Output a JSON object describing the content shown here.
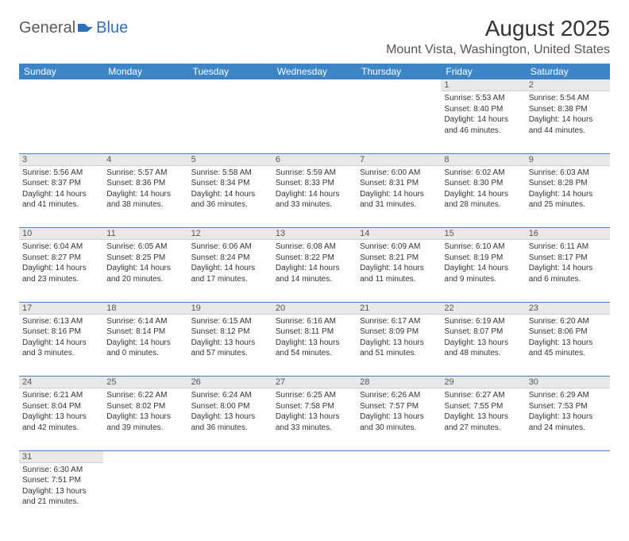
{
  "brand": {
    "part1": "General",
    "part2": "Blue"
  },
  "title": "August 2025",
  "location": "Mount Vista, Washington, United States",
  "colors": {
    "header_bg": "#3d85c6",
    "header_text": "#ffffff",
    "daynum_bg": "#e8e8e8",
    "rule": "#3d85c6",
    "brand_gray": "#5a5a5a",
    "brand_blue": "#2f6fb5"
  },
  "weekdays": [
    "Sunday",
    "Monday",
    "Tuesday",
    "Wednesday",
    "Thursday",
    "Friday",
    "Saturday"
  ],
  "weeks": [
    [
      null,
      null,
      null,
      null,
      null,
      {
        "n": "1",
        "sr": "Sunrise: 5:53 AM",
        "ss": "Sunset: 8:40 PM",
        "dl1": "Daylight: 14 hours",
        "dl2": "and 46 minutes."
      },
      {
        "n": "2",
        "sr": "Sunrise: 5:54 AM",
        "ss": "Sunset: 8:38 PM",
        "dl1": "Daylight: 14 hours",
        "dl2": "and 44 minutes."
      }
    ],
    [
      {
        "n": "3",
        "sr": "Sunrise: 5:56 AM",
        "ss": "Sunset: 8:37 PM",
        "dl1": "Daylight: 14 hours",
        "dl2": "and 41 minutes."
      },
      {
        "n": "4",
        "sr": "Sunrise: 5:57 AM",
        "ss": "Sunset: 8:36 PM",
        "dl1": "Daylight: 14 hours",
        "dl2": "and 38 minutes."
      },
      {
        "n": "5",
        "sr": "Sunrise: 5:58 AM",
        "ss": "Sunset: 8:34 PM",
        "dl1": "Daylight: 14 hours",
        "dl2": "and 36 minutes."
      },
      {
        "n": "6",
        "sr": "Sunrise: 5:59 AM",
        "ss": "Sunset: 8:33 PM",
        "dl1": "Daylight: 14 hours",
        "dl2": "and 33 minutes."
      },
      {
        "n": "7",
        "sr": "Sunrise: 6:00 AM",
        "ss": "Sunset: 8:31 PM",
        "dl1": "Daylight: 14 hours",
        "dl2": "and 31 minutes."
      },
      {
        "n": "8",
        "sr": "Sunrise: 6:02 AM",
        "ss": "Sunset: 8:30 PM",
        "dl1": "Daylight: 14 hours",
        "dl2": "and 28 minutes."
      },
      {
        "n": "9",
        "sr": "Sunrise: 6:03 AM",
        "ss": "Sunset: 8:28 PM",
        "dl1": "Daylight: 14 hours",
        "dl2": "and 25 minutes."
      }
    ],
    [
      {
        "n": "10",
        "sr": "Sunrise: 6:04 AM",
        "ss": "Sunset: 8:27 PM",
        "dl1": "Daylight: 14 hours",
        "dl2": "and 23 minutes."
      },
      {
        "n": "11",
        "sr": "Sunrise: 6:05 AM",
        "ss": "Sunset: 8:25 PM",
        "dl1": "Daylight: 14 hours",
        "dl2": "and 20 minutes."
      },
      {
        "n": "12",
        "sr": "Sunrise: 6:06 AM",
        "ss": "Sunset: 8:24 PM",
        "dl1": "Daylight: 14 hours",
        "dl2": "and 17 minutes."
      },
      {
        "n": "13",
        "sr": "Sunrise: 6:08 AM",
        "ss": "Sunset: 8:22 PM",
        "dl1": "Daylight: 14 hours",
        "dl2": "and 14 minutes."
      },
      {
        "n": "14",
        "sr": "Sunrise: 6:09 AM",
        "ss": "Sunset: 8:21 PM",
        "dl1": "Daylight: 14 hours",
        "dl2": "and 11 minutes."
      },
      {
        "n": "15",
        "sr": "Sunrise: 6:10 AM",
        "ss": "Sunset: 8:19 PM",
        "dl1": "Daylight: 14 hours",
        "dl2": "and 9 minutes."
      },
      {
        "n": "16",
        "sr": "Sunrise: 6:11 AM",
        "ss": "Sunset: 8:17 PM",
        "dl1": "Daylight: 14 hours",
        "dl2": "and 6 minutes."
      }
    ],
    [
      {
        "n": "17",
        "sr": "Sunrise: 6:13 AM",
        "ss": "Sunset: 8:16 PM",
        "dl1": "Daylight: 14 hours",
        "dl2": "and 3 minutes."
      },
      {
        "n": "18",
        "sr": "Sunrise: 6:14 AM",
        "ss": "Sunset: 8:14 PM",
        "dl1": "Daylight: 14 hours",
        "dl2": "and 0 minutes."
      },
      {
        "n": "19",
        "sr": "Sunrise: 6:15 AM",
        "ss": "Sunset: 8:12 PM",
        "dl1": "Daylight: 13 hours",
        "dl2": "and 57 minutes."
      },
      {
        "n": "20",
        "sr": "Sunrise: 6:16 AM",
        "ss": "Sunset: 8:11 PM",
        "dl1": "Daylight: 13 hours",
        "dl2": "and 54 minutes."
      },
      {
        "n": "21",
        "sr": "Sunrise: 6:17 AM",
        "ss": "Sunset: 8:09 PM",
        "dl1": "Daylight: 13 hours",
        "dl2": "and 51 minutes."
      },
      {
        "n": "22",
        "sr": "Sunrise: 6:19 AM",
        "ss": "Sunset: 8:07 PM",
        "dl1": "Daylight: 13 hours",
        "dl2": "and 48 minutes."
      },
      {
        "n": "23",
        "sr": "Sunrise: 6:20 AM",
        "ss": "Sunset: 8:06 PM",
        "dl1": "Daylight: 13 hours",
        "dl2": "and 45 minutes."
      }
    ],
    [
      {
        "n": "24",
        "sr": "Sunrise: 6:21 AM",
        "ss": "Sunset: 8:04 PM",
        "dl1": "Daylight: 13 hours",
        "dl2": "and 42 minutes."
      },
      {
        "n": "25",
        "sr": "Sunrise: 6:22 AM",
        "ss": "Sunset: 8:02 PM",
        "dl1": "Daylight: 13 hours",
        "dl2": "and 39 minutes."
      },
      {
        "n": "26",
        "sr": "Sunrise: 6:24 AM",
        "ss": "Sunset: 8:00 PM",
        "dl1": "Daylight: 13 hours",
        "dl2": "and 36 minutes."
      },
      {
        "n": "27",
        "sr": "Sunrise: 6:25 AM",
        "ss": "Sunset: 7:58 PM",
        "dl1": "Daylight: 13 hours",
        "dl2": "and 33 minutes."
      },
      {
        "n": "28",
        "sr": "Sunrise: 6:26 AM",
        "ss": "Sunset: 7:57 PM",
        "dl1": "Daylight: 13 hours",
        "dl2": "and 30 minutes."
      },
      {
        "n": "29",
        "sr": "Sunrise: 6:27 AM",
        "ss": "Sunset: 7:55 PM",
        "dl1": "Daylight: 13 hours",
        "dl2": "and 27 minutes."
      },
      {
        "n": "30",
        "sr": "Sunrise: 6:29 AM",
        "ss": "Sunset: 7:53 PM",
        "dl1": "Daylight: 13 hours",
        "dl2": "and 24 minutes."
      }
    ],
    [
      {
        "n": "31",
        "sr": "Sunrise: 6:30 AM",
        "ss": "Sunset: 7:51 PM",
        "dl1": "Daylight: 13 hours",
        "dl2": "and 21 minutes."
      },
      null,
      null,
      null,
      null,
      null,
      null
    ]
  ]
}
